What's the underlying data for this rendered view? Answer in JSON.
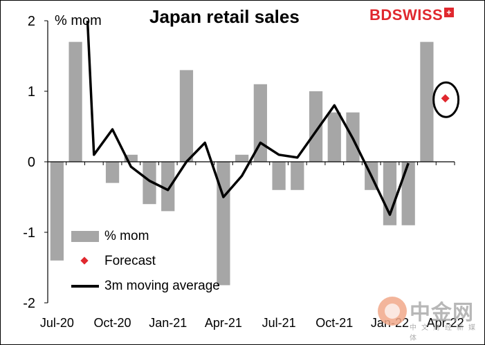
{
  "title": "Japan retail sales",
  "unit_label": "% mom",
  "brand": "BDSWISS",
  "watermark": {
    "main": "中金网",
    "sub": "中文财经新媒体"
  },
  "legend": [
    {
      "label": "% mom",
      "kind": "bar"
    },
    {
      "label": "Forecast",
      "kind": "diamond"
    },
    {
      "label": "3m moving average",
      "kind": "line"
    }
  ],
  "colors": {
    "bars": "#a6a6a6",
    "forecast": "#e0282e",
    "line": "#000000",
    "brand": "#e0282e"
  },
  "chart_data": {
    "type": "bar",
    "title": "Japan retail sales",
    "ylabel": "% mom",
    "xlabel": "",
    "ylim": [
      -2,
      2
    ],
    "yticks": [
      2,
      1,
      0,
      -1,
      -2
    ],
    "x_tick_labels": [
      "Jul-20",
      "Oct-20",
      "Jan-21",
      "Apr-21",
      "Jul-21",
      "Oct-21",
      "Jan-22",
      "Apr-22"
    ],
    "categories": [
      "Jul-20",
      "Aug-20",
      "Sep-20",
      "Oct-20",
      "Nov-20",
      "Dec-20",
      "Jan-21",
      "Feb-21",
      "Mar-21",
      "Apr-21",
      "May-21",
      "Jun-21",
      "Jul-21",
      "Aug-21",
      "Sep-21",
      "Oct-21",
      "Nov-21",
      "Dec-21",
      "Jan-22",
      "Feb-22",
      "Mar-22",
      "Apr-22"
    ],
    "series": [
      {
        "name": "% mom",
        "type": "bar",
        "values": [
          -1.4,
          1.7,
          0.0,
          -0.3,
          0.1,
          -0.6,
          -0.7,
          1.3,
          0.0,
          -1.75,
          0.1,
          1.1,
          -0.4,
          -0.4,
          1.0,
          0.7,
          0.7,
          -0.4,
          -0.9,
          -0.9,
          1.7,
          null
        ]
      },
      {
        "name": "3m moving average",
        "type": "line",
        "values": [
          null,
          2.0,
          0.1,
          0.46,
          -0.07,
          -0.27,
          -0.4,
          0.0,
          0.27,
          -0.5,
          -0.2,
          0.27,
          0.1,
          0.06,
          0.43,
          0.8,
          0.33,
          -0.2,
          -0.75,
          -0.02,
          null,
          null
        ],
        "start_x": 1.65
      },
      {
        "name": "Forecast",
        "type": "point",
        "values": [
          null,
          null,
          null,
          null,
          null,
          null,
          null,
          null,
          null,
          null,
          null,
          null,
          null,
          null,
          null,
          null,
          null,
          null,
          null,
          null,
          null,
          0.9
        ]
      }
    ],
    "annotations": [
      {
        "type": "ellipse",
        "around": "Forecast"
      }
    ],
    "legend_position": "bottom-left",
    "grid": false
  }
}
